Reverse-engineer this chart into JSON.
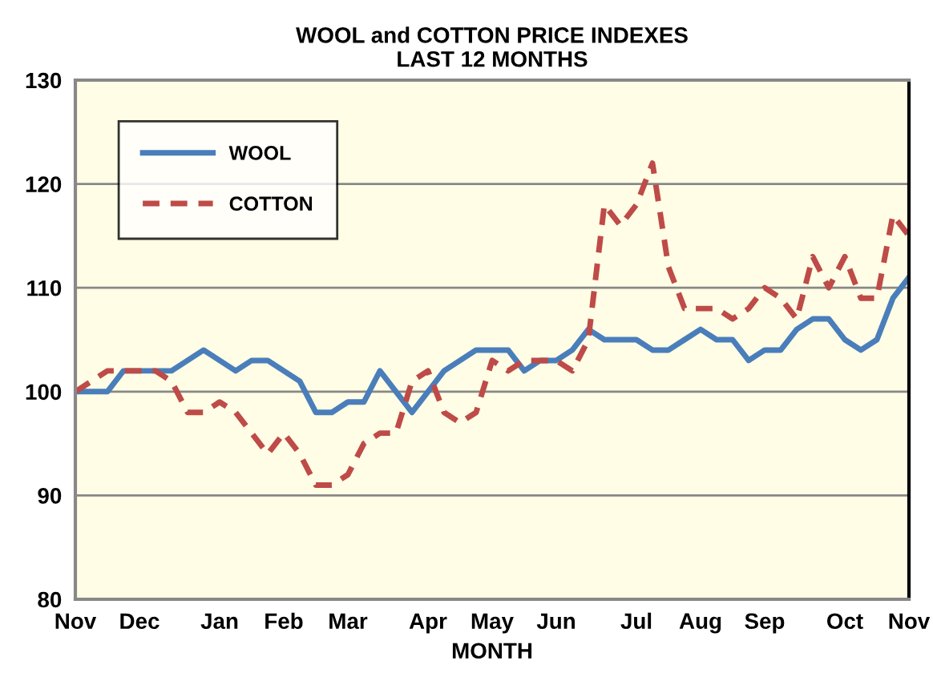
{
  "chart_data": {
    "type": "line",
    "title": "WOOL and COTTON PRICE INDEXES\nLAST 12 MONTHS",
    "xlabel": "MONTH",
    "categories": [
      "Nov",
      null,
      null,
      null,
      "Dec",
      null,
      null,
      null,
      null,
      "Jan",
      null,
      null,
      null,
      "Feb",
      null,
      null,
      null,
      "Mar",
      null,
      null,
      null,
      null,
      "Apr",
      null,
      null,
      null,
      "May",
      null,
      null,
      null,
      "Jun",
      null,
      null,
      null,
      null,
      "Jul",
      null,
      null,
      null,
      "Aug",
      null,
      null,
      null,
      "Sep",
      null,
      null,
      null,
      null,
      "Oct",
      null,
      null,
      null,
      "Nov"
    ],
    "series": [
      {
        "name": "WOOL",
        "color": "#4a7ebb",
        "line_style": "solid",
        "values": [
          100,
          100,
          100,
          102,
          102,
          102,
          102,
          103,
          104,
          103,
          102,
          103,
          103,
          102,
          101,
          98,
          98,
          99,
          99,
          102,
          100,
          98,
          100,
          102,
          103,
          104,
          104,
          104,
          102,
          103,
          103,
          104,
          106,
          105,
          105,
          105,
          104,
          104,
          105,
          106,
          105,
          105,
          103,
          104,
          104,
          106,
          107,
          107,
          105,
          104,
          105,
          109,
          111
        ]
      },
      {
        "name": "COTTON",
        "color": "#be4b48",
        "line_style": "dashed",
        "values": [
          100,
          101,
          102,
          102,
          102,
          102,
          101,
          98,
          98,
          99,
          98,
          96,
          94,
          96,
          94,
          91,
          91,
          92,
          95,
          96,
          96,
          101,
          102,
          98,
          97,
          98,
          103,
          102,
          103,
          103,
          103,
          102,
          105,
          118,
          116,
          118,
          122,
          112,
          108,
          108,
          108,
          107,
          108,
          110,
          109,
          107,
          113,
          110,
          113,
          109,
          109,
          117,
          115
        ]
      }
    ],
    "ylim": [
      80,
      130
    ],
    "yticks": [
      80,
      90,
      100,
      110,
      120,
      130
    ],
    "grid": "y",
    "legend": "top left",
    "marker": "none"
  }
}
